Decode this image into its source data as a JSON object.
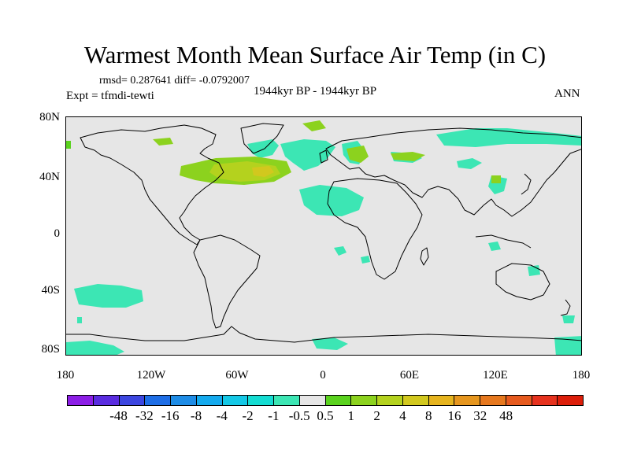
{
  "title": "Warmest Month Mean Surface Air Temp (in C)",
  "stats": "rmsd= 0.287641 diff= -0.0792007",
  "period": "1944kyr BP - 1944kyr BP",
  "experiment": "Expt = tfmdi-tewti",
  "season": "ANN",
  "lat_labels": [
    "80N",
    "40N",
    "0",
    "40S",
    "80S"
  ],
  "lon_labels": [
    "180",
    "120W",
    "60W",
    "0",
    "60E",
    "120E",
    "180"
  ],
  "colorbar": {
    "colors": [
      "#8c1ee6",
      "#5a2ce0",
      "#3c46e0",
      "#1e6ee6",
      "#1e8ce6",
      "#14aaee",
      "#14c8e6",
      "#14dcd2",
      "#3ce6b4",
      "#e6e6e6",
      "#5ad21e",
      "#8cd21e",
      "#b4d21e",
      "#d2c81e",
      "#e6b41e",
      "#e6961e",
      "#e6781e",
      "#e65a1e",
      "#e6321e",
      "#dc1e0a"
    ],
    "labels": [
      "-48",
      "-32",
      "-16",
      "-8",
      "-4",
      "-2",
      "-1",
      "-0.5",
      "0.5",
      "1",
      "2",
      "4",
      "8",
      "16",
      "32",
      "48"
    ]
  },
  "map_colors": {
    "background": "#e6e6e6",
    "cool": "#3ce6b4",
    "warm": "#8cd21e",
    "warmer": "#b4d21e",
    "warmest": "#d2c81e"
  }
}
